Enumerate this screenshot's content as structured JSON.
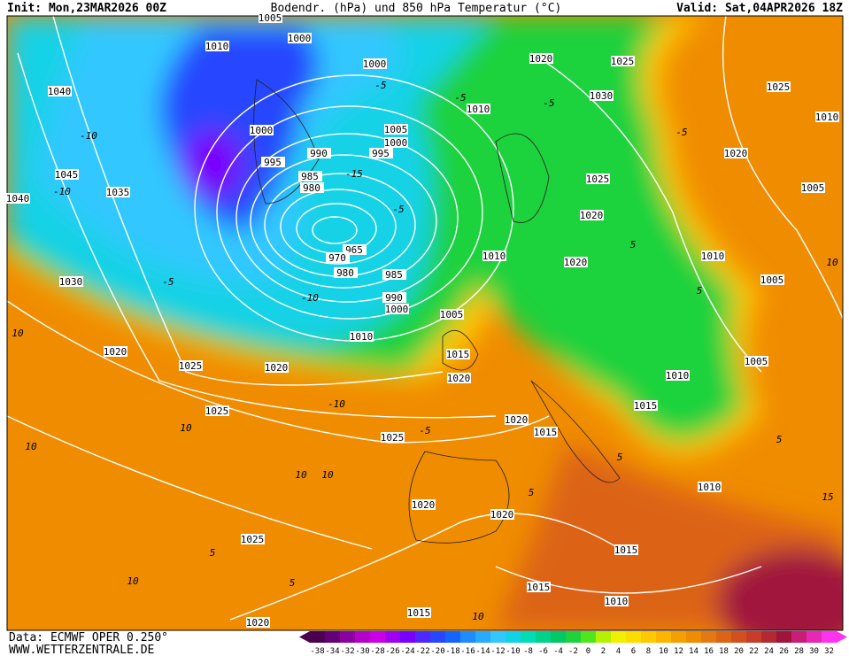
{
  "header": {
    "init": "Init: Mon,23MAR2026 00Z",
    "title": "Bodendr. (hPa) und 850 hPa Temperatur (°C)",
    "valid": "Valid: Sat,04APR2026 18Z"
  },
  "footer": {
    "data": "Data: ECMWF OPER 0.250°",
    "site": "WWW.WETTERZENTRALE.DE"
  },
  "colorbar": {
    "ticks": [
      -38,
      -34,
      -32,
      -30,
      -28,
      -26,
      -24,
      -22,
      -20,
      -18,
      -16,
      -14,
      -12,
      -10,
      -8,
      -6,
      -4,
      -2,
      0,
      2,
      4,
      6,
      8,
      10,
      12,
      14,
      16,
      18,
      20,
      22,
      24,
      26,
      28,
      30,
      32
    ],
    "colors": [
      "#4b0050",
      "#640078",
      "#8c00a0",
      "#b400c8",
      "#c800e6",
      "#a000f0",
      "#7800ff",
      "#5028ff",
      "#2846ff",
      "#1464ff",
      "#1e8cff",
      "#28aaff",
      "#32c8ff",
      "#14d2e6",
      "#00dcb4",
      "#00d28c",
      "#00c864",
      "#1ed23c",
      "#50e61e",
      "#b4f000",
      "#f0f000",
      "#ffdc00",
      "#ffc800",
      "#ffb400",
      "#f5a000",
      "#f08c00",
      "#e67814",
      "#dc6414",
      "#d2501e",
      "#c83c28",
      "#b42832",
      "#a0143c",
      "#c81e78",
      "#e628b4",
      "#ff32f0"
    ]
  },
  "isobar_labels": [
    "1005",
    "1010",
    "1000",
    "1000",
    "1040",
    "1000",
    "995",
    "990",
    "985",
    "980",
    "1045",
    "1035",
    "1040",
    "1005",
    "1000",
    "995",
    "965",
    "970",
    "980",
    "985",
    "990",
    "1000",
    "1030",
    "1010",
    "1005",
    "1020",
    "1025",
    "1020",
    "1015",
    "1020",
    "1025",
    "1025",
    "1020",
    "1015",
    "1020",
    "1020",
    "1025",
    "1015",
    "1015",
    "1015",
    "1020",
    "1010",
    "1010",
    "1010",
    "1015",
    "1005",
    "1005",
    "1010",
    "1010",
    "1020",
    "1020",
    "1025",
    "1030",
    "1020",
    "1025",
    "1010",
    "1025",
    "1010",
    "1020",
    "1005"
  ],
  "temperature_labels": [
    "-10",
    "-5",
    "-5",
    "-15",
    "-10",
    "-5",
    "-10",
    "-5",
    "-5",
    "10",
    "10",
    "10",
    "-10",
    "-5",
    "5",
    "10",
    "10",
    "10",
    "5",
    "5",
    "5",
    "10",
    "5",
    "5",
    "15",
    "10",
    "-5",
    "5"
  ]
}
